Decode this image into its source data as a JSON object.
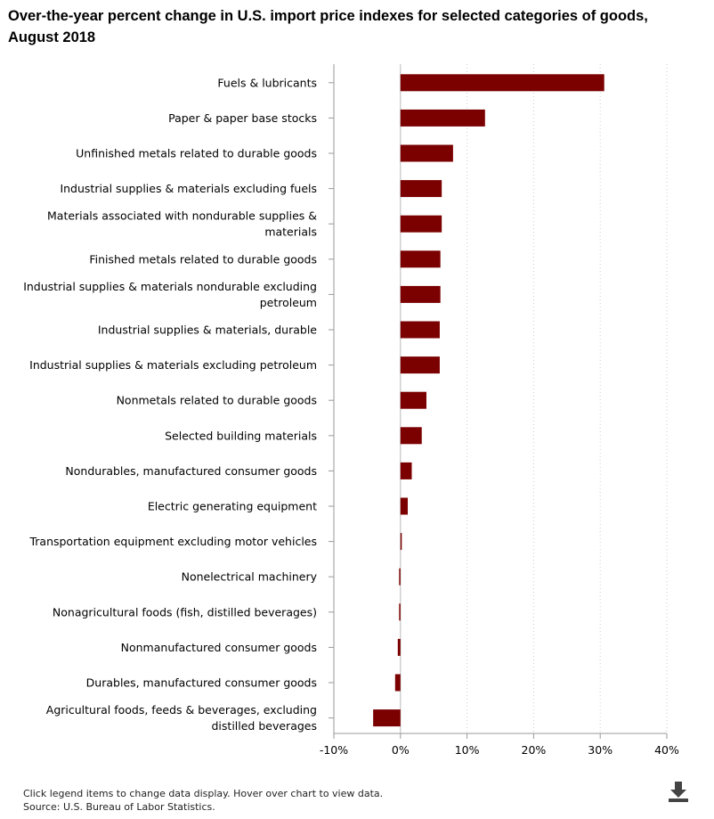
{
  "title": "Over-the-year percent change in U.S. import price indexes for selected categories of goods, August 2018",
  "footnote": "Click legend items to change data display. Hover over chart to view data.",
  "source": "Source: U.S. Bureau of Labor Statistics.",
  "download_icon": "download-icon",
  "colors": {
    "bar": "#7b0000",
    "axis": "#999999",
    "grid": "#cccccc"
  },
  "chart_data": {
    "type": "bar",
    "orientation": "horizontal",
    "title": "Over-the-year percent change in U.S. import price indexes for selected categories of goods, August 2018",
    "xlabel": "",
    "ylabel": "",
    "xlim": [
      -10,
      40
    ],
    "x_ticks": [
      "-10%",
      "0%",
      "10%",
      "20%",
      "30%",
      "40%"
    ],
    "x_tick_values": [
      -10,
      0,
      10,
      20,
      30,
      40
    ],
    "grid": "vertical dotted",
    "categories": [
      [
        "Fuels & lubricants"
      ],
      [
        "Paper & paper base stocks"
      ],
      [
        "Unfinished metals related to durable goods"
      ],
      [
        "Industrial supplies & materials excluding fuels"
      ],
      [
        "Materials associated with nondurable supplies &",
        "materials"
      ],
      [
        "Finished metals related to durable goods"
      ],
      [
        "Industrial supplies & materials nondurable excluding",
        "petroleum"
      ],
      [
        "Industrial supplies & materials, durable"
      ],
      [
        "Industrial supplies & materials excluding petroleum"
      ],
      [
        "Nonmetals related to durable goods"
      ],
      [
        "Selected building materials"
      ],
      [
        "Nondurables, manufactured consumer goods"
      ],
      [
        "Electric generating equipment"
      ],
      [
        "Transportation equipment excluding motor vehicles"
      ],
      [
        "Nonelectrical machinery"
      ],
      [
        "Nonagricultural foods (fish, distilled beverages)"
      ],
      [
        "Nonmanufactured consumer goods"
      ],
      [
        "Durables, manufactured consumer goods"
      ],
      [
        "Agricultural foods, feeds & beverages, excluding",
        "distilled beverages"
      ]
    ],
    "values": [
      30.6,
      12.7,
      7.9,
      6.2,
      6.2,
      6.0,
      6.0,
      5.9,
      5.9,
      3.9,
      3.2,
      1.7,
      1.1,
      0.2,
      -0.2,
      -0.2,
      -0.4,
      -0.8,
      -4.1
    ]
  }
}
